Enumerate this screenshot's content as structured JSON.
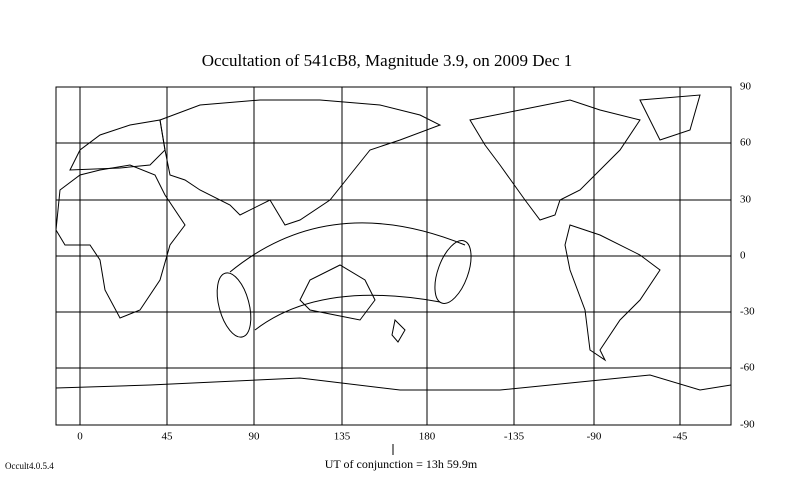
{
  "title": "Occultation  of  541cB8,      Magnitude 3.9,   on  2009 Dec  1",
  "map": {
    "longitude_labels": [
      "0",
      "45",
      "90",
      "135",
      "180",
      "-135",
      "-90",
      "-45"
    ],
    "latitude_labels": [
      "90",
      "60",
      "30",
      "0",
      "-30",
      "-60",
      "-90"
    ]
  },
  "conjunction_label": "UT of conjunction = 13h 59.9m",
  "version": "Occult4.0.5.4"
}
